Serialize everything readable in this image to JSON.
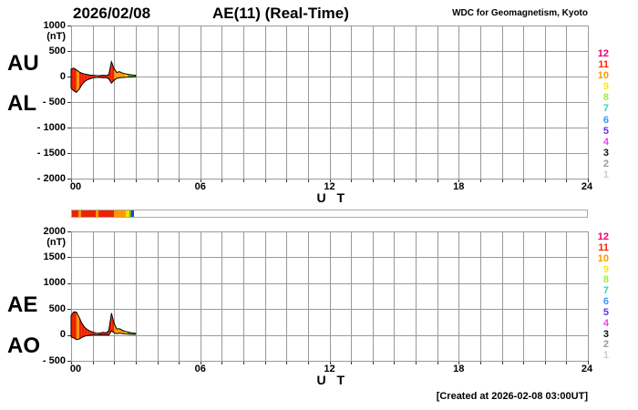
{
  "header": {
    "date": "2026/02/08",
    "title": "AE(11) (Real-Time)",
    "source": "WDC for Geomagnetism, Kyoto"
  },
  "footer": {
    "created": "[Created at 2026-02-08 03:00UT]"
  },
  "legend": {
    "station_counts": [
      {
        "label": "12",
        "color": "#E8006E"
      },
      {
        "label": "11",
        "color": "#FF2200"
      },
      {
        "label": "10",
        "color": "#FF9900"
      },
      {
        "label": "9",
        "color": "#FFE800"
      },
      {
        "label": "8",
        "color": "#99EE44"
      },
      {
        "label": "7",
        "color": "#22DDBB"
      },
      {
        "label": "6",
        "color": "#3399FF"
      },
      {
        "label": "5",
        "color": "#6633DD"
      },
      {
        "label": "4",
        "color": "#EE44EE"
      },
      {
        "label": "3",
        "color": "#111111"
      },
      {
        "label": "2",
        "color": "#999999"
      },
      {
        "label": "1",
        "color": "#CCCCCC"
      }
    ]
  },
  "availability_bar": {
    "hours": 24,
    "segments": [
      {
        "from": 0,
        "to": 0.31,
        "color": "#EE2200"
      },
      {
        "from": 0.31,
        "to": 0.44,
        "color": "#FF9900"
      },
      {
        "from": 0.44,
        "to": 1.1,
        "color": "#EE2200"
      },
      {
        "from": 1.1,
        "to": 1.23,
        "color": "#FF9900"
      },
      {
        "from": 1.23,
        "to": 1.95,
        "color": "#EE2200"
      },
      {
        "from": 1.95,
        "to": 2.5,
        "color": "#FF9900"
      },
      {
        "from": 2.5,
        "to": 2.67,
        "color": "#FFDD00"
      },
      {
        "from": 2.67,
        "to": 2.78,
        "color": "#55BB00"
      },
      {
        "from": 2.78,
        "to": 2.9,
        "color": "#2244CC"
      }
    ]
  },
  "chart_data": [
    {
      "type": "area",
      "panel": "AU/AL (upper panel)",
      "left_labels": [
        "AU",
        "AL"
      ],
      "unit": "(nT)",
      "ylim": [
        -2000,
        1000
      ],
      "yticks": [
        {
          "value": 1000,
          "label": "1000"
        },
        {
          "value": 500,
          "label": "500"
        },
        {
          "value": 0,
          "label": "0"
        },
        {
          "value": -500,
          "label": "- 500"
        },
        {
          "value": -1000,
          "label": "- 1000"
        },
        {
          "value": -1500,
          "label": "- 1500"
        },
        {
          "value": -2000,
          "label": "- 2000"
        }
      ],
      "xlim": [
        0,
        24
      ],
      "xticks": [
        {
          "value": 0,
          "label": "00"
        },
        {
          "value": 6,
          "label": "06"
        },
        {
          "value": 12,
          "label": "12"
        },
        {
          "value": 18,
          "label": "18"
        },
        {
          "value": 24,
          "label": "24"
        }
      ],
      "xlabel": "U T",
      "grid": true,
      "x_hours": [
        0,
        0.125,
        0.25,
        0.375,
        0.5,
        0.625,
        0.75,
        0.875,
        1,
        1.125,
        1.25,
        1.375,
        1.5,
        1.625,
        1.75,
        1.875,
        2,
        2.125,
        2.25,
        2.375,
        2.5,
        2.625,
        2.75,
        2.875,
        3
      ],
      "series": [
        {
          "name": "AU",
          "values": [
            150,
            165,
            130,
            90,
            65,
            50,
            40,
            30,
            25,
            20,
            15,
            20,
            25,
            20,
            35,
            290,
            150,
            80,
            95,
            70,
            55,
            45,
            35,
            30,
            25
          ]
        },
        {
          "name": "AL",
          "values": [
            -230,
            -280,
            -310,
            -250,
            -160,
            -100,
            -65,
            -45,
            -30,
            -20,
            -15,
            -20,
            -25,
            -20,
            -45,
            -130,
            -70,
            -35,
            -25,
            -20,
            -15,
            -12,
            -10,
            -8,
            -5
          ]
        }
      ],
      "segment_colors": [
        "#EE2200",
        "#EE2200",
        "#FF9900",
        "#EE2200",
        "#EE2200",
        "#EE2200",
        "#EE2200",
        "#EE2200",
        "#EE2200",
        "#FF9900",
        "#EE2200",
        "#EE2200",
        "#EE2200",
        "#EE2200",
        "#EE2200",
        "#EE2200",
        "#FF9900",
        "#FF9900",
        "#FF9900",
        "#FF9900",
        "#FFDD00",
        "#55BB00",
        "#55BB00",
        "#55BB00"
      ]
    },
    {
      "type": "area",
      "panel": "AE/AO (lower panel)",
      "left_labels": [
        "AE",
        "AO"
      ],
      "unit": "(nT)",
      "ylim": [
        -500,
        2000
      ],
      "yticks": [
        {
          "value": 2000,
          "label": "2000"
        },
        {
          "value": 1500,
          "label": "1500"
        },
        {
          "value": 1000,
          "label": "1000"
        },
        {
          "value": 500,
          "label": "500"
        },
        {
          "value": 0,
          "label": "0"
        },
        {
          "value": -500,
          "label": "- 500"
        }
      ],
      "xlim": [
        0,
        24
      ],
      "xticks": [
        {
          "value": 0,
          "label": "00"
        },
        {
          "value": 6,
          "label": "06"
        },
        {
          "value": 12,
          "label": "12"
        },
        {
          "value": 18,
          "label": "18"
        },
        {
          "value": 24,
          "label": "24"
        }
      ],
      "xlabel": "U T",
      "grid": true,
      "x_hours": [
        0,
        0.125,
        0.25,
        0.375,
        0.5,
        0.625,
        0.75,
        0.875,
        1,
        1.125,
        1.25,
        1.375,
        1.5,
        1.625,
        1.75,
        1.875,
        2,
        2.125,
        2.25,
        2.375,
        2.5,
        2.625,
        2.75,
        2.875,
        3
      ],
      "series": [
        {
          "name": "AE",
          "values": [
            380,
            445,
            440,
            340,
            225,
            150,
            105,
            75,
            55,
            40,
            30,
            40,
            50,
            40,
            80,
            420,
            220,
            115,
            120,
            90,
            70,
            57,
            45,
            38,
            30
          ]
        },
        {
          "name": "AO",
          "values": [
            -40,
            -58,
            -90,
            -80,
            -48,
            -25,
            -13,
            -8,
            -3,
            0,
            0,
            0,
            0,
            0,
            -5,
            80,
            40,
            23,
            35,
            25,
            20,
            17,
            13,
            11,
            10
          ]
        }
      ],
      "segment_colors": [
        "#EE2200",
        "#EE2200",
        "#FF9900",
        "#EE2200",
        "#EE2200",
        "#EE2200",
        "#EE2200",
        "#EE2200",
        "#EE2200",
        "#FF9900",
        "#EE2200",
        "#EE2200",
        "#EE2200",
        "#EE2200",
        "#EE2200",
        "#EE2200",
        "#FF9900",
        "#FF9900",
        "#FF9900",
        "#FF9900",
        "#FFDD00",
        "#55BB00",
        "#55BB00",
        "#55BB00"
      ]
    }
  ]
}
